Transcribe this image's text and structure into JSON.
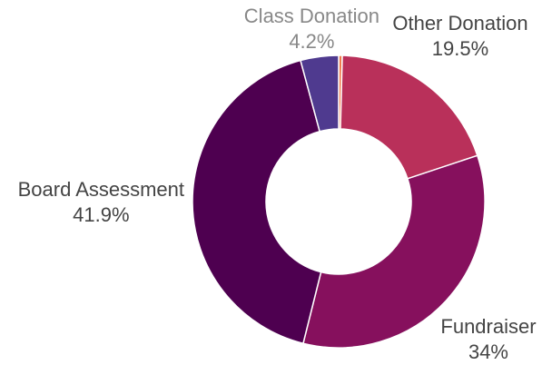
{
  "chart_data": {
    "type": "donut",
    "categories": [
      null,
      "Other Donation",
      "Fundraiser",
      "Board Assessment",
      "Class Donation"
    ],
    "values": [
      0.4,
      19.5,
      34,
      41.9,
      4.2
    ],
    "value_labels": [
      null,
      "19.5%",
      "34%",
      "41.9%",
      "4.2%"
    ],
    "colors": [
      "#f07a4a",
      "#b9305a",
      "#86105d",
      "#4e0050",
      "#4f3a8f"
    ],
    "label_colors": [
      "#444444",
      "#444444",
      "#444444",
      "#444444",
      "#888888"
    ]
  }
}
